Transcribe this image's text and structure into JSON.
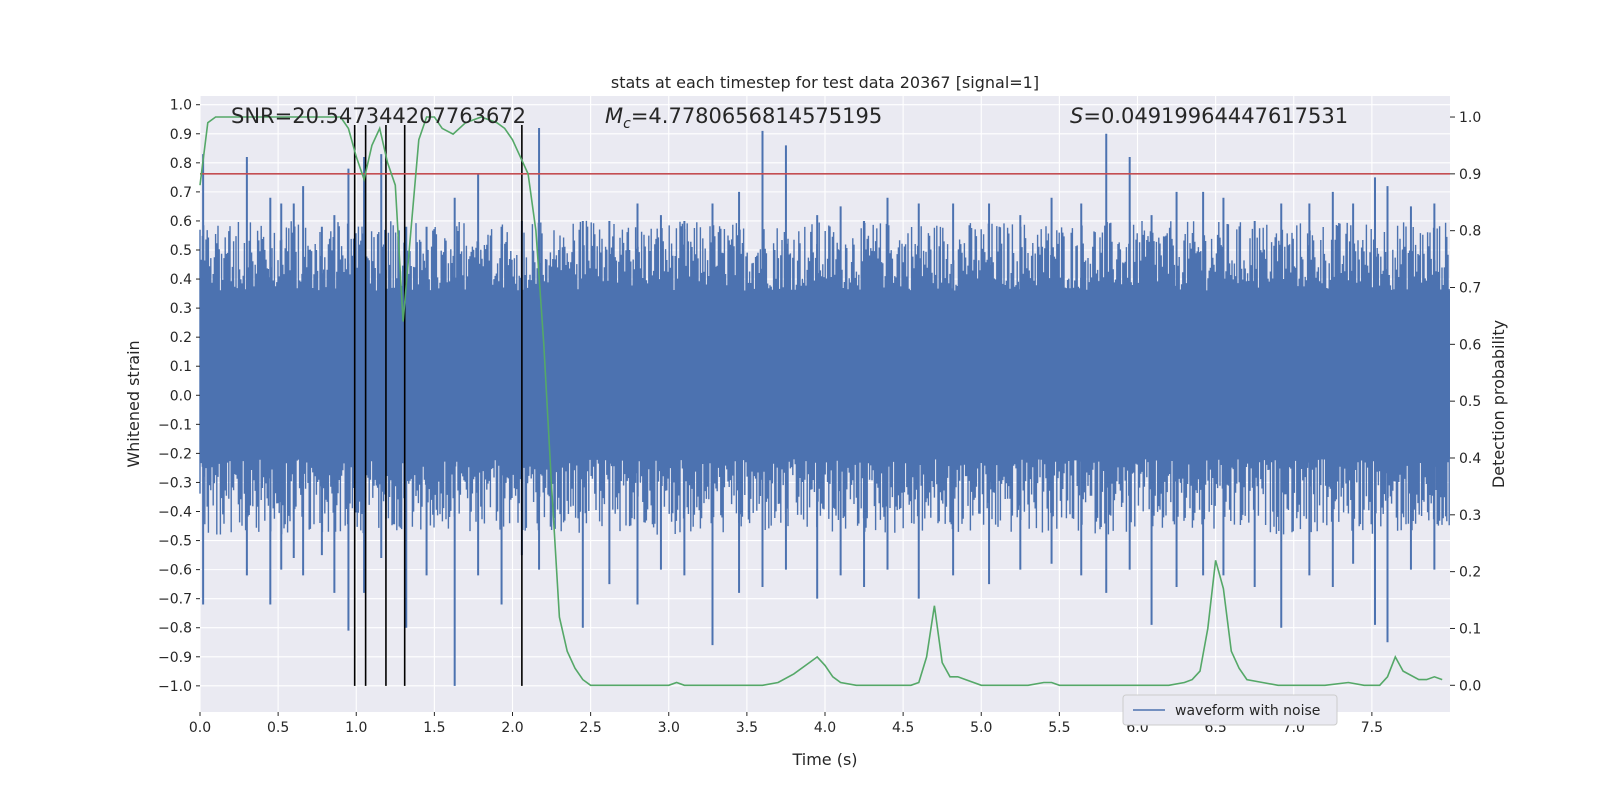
{
  "chart_data": {
    "type": "line",
    "title": "stats at each timestep for test data 20367 [signal=1]",
    "xlabel": "Time (s)",
    "ylabel_left": "Whitened strain",
    "ylabel_right": "Detection probability",
    "xlim": [
      0.0,
      8.0
    ],
    "ylim_left": [
      -1.09,
      1.03
    ],
    "ylim_right": [
      -0.047,
      1.037
    ],
    "x_ticks": [
      0.0,
      0.5,
      1.0,
      1.5,
      2.0,
      2.5,
      3.0,
      3.5,
      4.0,
      4.5,
      5.0,
      5.5,
      6.0,
      6.5,
      7.0,
      7.5
    ],
    "x_tick_labels": [
      "0.0",
      "0.5",
      "1.0",
      "1.5",
      "2.0",
      "2.5",
      "3.0",
      "3.5",
      "4.0",
      "4.5",
      "5.0",
      "5.5",
      "6.0",
      "6.5",
      "7.0",
      "7.5"
    ],
    "y_left_ticks": [
      1.0,
      0.9,
      0.8,
      0.7,
      0.6,
      0.5,
      0.4,
      0.3,
      0.2,
      0.1,
      0.0,
      -0.1,
      -0.2,
      -0.3,
      -0.4,
      -0.5,
      -0.6,
      -0.7,
      -0.8,
      -0.9,
      -1.0
    ],
    "y_left_tick_labels": [
      "1.0",
      "0.9",
      "0.8",
      "0.7",
      "0.6",
      "0.5",
      "0.4",
      "0.3",
      "0.2",
      "0.1",
      "0.0",
      "−0.1",
      "−0.2",
      "−0.3",
      "−0.4",
      "−0.5",
      "−0.6",
      "−0.7",
      "−0.8",
      "−0.9",
      "−1.0"
    ],
    "y_right_ticks": [
      1.0,
      0.9,
      0.8,
      0.7,
      0.6,
      0.5,
      0.4,
      0.3,
      0.2,
      0.1,
      0.0
    ],
    "y_right_tick_labels": [
      "1.0",
      "0.9",
      "0.8",
      "0.7",
      "0.6",
      "0.5",
      "0.4",
      "0.3",
      "0.2",
      "0.1",
      "0.0"
    ],
    "annotations": {
      "snr": "SNR=20.547344207763672",
      "mc_symbol": "M",
      "mc_subscript": "c",
      "mc_value": "=4.7780656814575195",
      "s_symbol": "S",
      "s_value": "=0.04919964447617531"
    },
    "series": [
      {
        "name": "waveform with noise",
        "axis": "left",
        "color": "#4c72b0",
        "core_band": [
          -0.22,
          0.36
        ],
        "spikes": [
          [
            0.02,
            0.83,
            -0.72
          ],
          [
            0.3,
            0.82,
            -0.62
          ],
          [
            0.45,
            0.68,
            -0.72
          ],
          [
            0.52,
            0.66,
            -0.6
          ],
          [
            0.6,
            0.66,
            -0.56
          ],
          [
            0.66,
            0.72,
            -0.62
          ],
          [
            0.78,
            0.58,
            -0.55
          ],
          [
            0.86,
            0.62,
            -0.68
          ],
          [
            0.95,
            0.78,
            -0.81
          ],
          [
            1.05,
            0.82,
            -0.68
          ],
          [
            1.16,
            0.83,
            -0.56
          ],
          [
            1.32,
            0.58,
            -0.8
          ],
          [
            1.45,
            0.58,
            -0.62
          ],
          [
            1.63,
            0.68,
            -1.0
          ],
          [
            1.78,
            0.76,
            -0.62
          ],
          [
            1.93,
            0.58,
            -0.72
          ],
          [
            2.06,
            0.6,
            -0.55
          ],
          [
            2.17,
            0.92,
            -0.6
          ],
          [
            2.45,
            0.6,
            -0.8
          ],
          [
            2.62,
            0.6,
            -0.65
          ],
          [
            2.8,
            0.66,
            -0.72
          ],
          [
            2.95,
            0.62,
            -0.6
          ],
          [
            3.1,
            0.6,
            -0.62
          ],
          [
            3.28,
            0.66,
            -0.86
          ],
          [
            3.45,
            0.7,
            -0.68
          ],
          [
            3.6,
            0.91,
            -0.66
          ],
          [
            3.75,
            0.86,
            -0.6
          ],
          [
            3.95,
            0.62,
            -0.7
          ],
          [
            4.1,
            0.65,
            -0.62
          ],
          [
            4.25,
            0.6,
            -0.66
          ],
          [
            4.4,
            0.68,
            -0.6
          ],
          [
            4.6,
            0.66,
            -0.7
          ],
          [
            4.82,
            0.66,
            -0.62
          ],
          [
            5.05,
            0.66,
            -0.65
          ],
          [
            5.25,
            0.62,
            -0.6
          ],
          [
            5.45,
            0.68,
            -0.58
          ],
          [
            5.64,
            0.66,
            -0.62
          ],
          [
            5.8,
            0.9,
            -0.68
          ],
          [
            5.95,
            0.82,
            -0.6
          ],
          [
            6.09,
            0.62,
            -0.79
          ],
          [
            6.25,
            0.7,
            -0.66
          ],
          [
            6.42,
            0.7,
            -0.62
          ],
          [
            6.55,
            0.68,
            -0.62
          ],
          [
            6.75,
            0.6,
            -0.66
          ],
          [
            6.92,
            0.66,
            -0.8
          ],
          [
            7.1,
            0.66,
            -0.62
          ],
          [
            7.25,
            0.7,
            -0.66
          ],
          [
            7.38,
            0.66,
            -0.58
          ],
          [
            7.52,
            0.75,
            -0.79
          ],
          [
            7.6,
            0.72,
            -0.85
          ],
          [
            7.75,
            0.65,
            -0.6
          ],
          [
            7.9,
            0.66,
            -0.6
          ]
        ]
      },
      {
        "name": "detection probability",
        "axis": "right",
        "color": "#55a868",
        "x": [
          0.0,
          0.05,
          0.1,
          0.2,
          0.4,
          0.6,
          0.8,
          0.9,
          0.95,
          1.0,
          1.05,
          1.1,
          1.15,
          1.2,
          1.25,
          1.3,
          1.35,
          1.4,
          1.45,
          1.5,
          1.55,
          1.62,
          1.7,
          1.8,
          1.9,
          1.95,
          2.0,
          2.05,
          2.1,
          2.15,
          2.2,
          2.25,
          2.3,
          2.35,
          2.4,
          2.45,
          2.5,
          2.6,
          2.8,
          3.0,
          3.05,
          3.1,
          3.2,
          3.4,
          3.6,
          3.7,
          3.8,
          3.9,
          3.95,
          4.0,
          4.05,
          4.1,
          4.2,
          4.4,
          4.55,
          4.6,
          4.65,
          4.7,
          4.75,
          4.8,
          4.85,
          4.9,
          5.0,
          5.1,
          5.3,
          5.4,
          5.45,
          5.5,
          5.6,
          5.8,
          6.0,
          6.2,
          6.3,
          6.35,
          6.4,
          6.45,
          6.5,
          6.55,
          6.6,
          6.65,
          6.7,
          6.8,
          6.9,
          7.0,
          7.2,
          7.35,
          7.45,
          7.5,
          7.55,
          7.6,
          7.65,
          7.7,
          7.8,
          7.85,
          7.9,
          7.95
        ],
        "y": [
          0.88,
          0.99,
          1.0,
          1.0,
          1.0,
          1.0,
          1.0,
          1.0,
          0.98,
          0.93,
          0.89,
          0.95,
          0.98,
          0.92,
          0.88,
          0.64,
          0.8,
          0.96,
          1.0,
          1.0,
          0.98,
          0.97,
          0.99,
          1.0,
          0.99,
          0.98,
          0.96,
          0.93,
          0.9,
          0.8,
          0.6,
          0.35,
          0.12,
          0.06,
          0.03,
          0.01,
          0.0,
          0.0,
          0.0,
          0.0,
          0.005,
          0.0,
          0.0,
          0.0,
          0.0,
          0.005,
          0.02,
          0.04,
          0.05,
          0.035,
          0.015,
          0.005,
          0.0,
          0.0,
          0.0,
          0.005,
          0.05,
          0.14,
          0.04,
          0.015,
          0.015,
          0.01,
          0.0,
          0.0,
          0.0,
          0.005,
          0.005,
          0.0,
          0.0,
          0.0,
          0.0,
          0.0,
          0.005,
          0.01,
          0.025,
          0.1,
          0.22,
          0.17,
          0.06,
          0.03,
          0.01,
          0.005,
          0.0,
          0.0,
          0.0,
          0.005,
          0.0,
          0.0,
          0.0,
          0.015,
          0.05,
          0.025,
          0.01,
          0.01,
          0.015,
          0.01
        ]
      }
    ],
    "threshold": {
      "axis": "right",
      "value": 0.9,
      "color": "#c44e52"
    },
    "vlines": {
      "x": [
        0.99,
        1.06,
        1.19,
        1.31,
        2.06
      ],
      "ymin": -1.0,
      "ymax": 0.93,
      "color": "#000000"
    },
    "legend": {
      "entry": "waveform with noise",
      "placement": "lower-right"
    }
  }
}
